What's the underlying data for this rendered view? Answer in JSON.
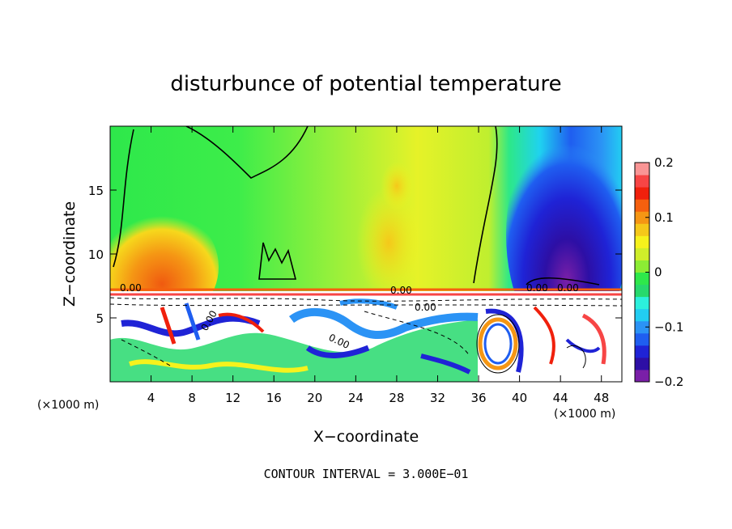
{
  "chart_data": {
    "type": "heatmap",
    "title": "disturbunce of potential temperature",
    "xlabel": "X−coordinate",
    "ylabel": "Z−coordinate",
    "x_unit": "(×1000 m)",
    "z_unit": "(×1000 m)",
    "xlim": [
      0,
      50
    ],
    "ylim": [
      0,
      20
    ],
    "x_ticks": [
      4,
      8,
      12,
      16,
      20,
      24,
      28,
      32,
      36,
      40,
      44,
      48
    ],
    "y_ticks": [
      5,
      10,
      15
    ],
    "x_tick_labels": [
      "4",
      "8",
      "12",
      "16",
      "20",
      "24",
      "28",
      "32",
      "36",
      "40",
      "44",
      "48"
    ],
    "y_tick_labels": [
      "5",
      "10",
      "15"
    ],
    "colorbar": {
      "range": [
        -0.2,
        0.2
      ],
      "tick_values": [
        0.2,
        0.1,
        0,
        -0.1,
        -0.2
      ],
      "tick_labels": [
        "0.2",
        "0.1",
        "0",
        "−0.1",
        "−0.2"
      ],
      "colors": [
        "#7a1fa8",
        "#2d0fa5",
        "#1f23d6",
        "#1f5ef0",
        "#2b93f5",
        "#22cdf2",
        "#2cf0dd",
        "#27d96d",
        "#2ee84b",
        "#8cec34",
        "#cfee2a",
        "#f6f21c",
        "#f5c81a",
        "#f59614",
        "#f5600f",
        "#f0200c",
        "#f74545",
        "#f99595"
      ]
    },
    "contour_labels": [
      "0.00",
      "0.00",
      "0.00",
      "0.00",
      "0.00",
      "0.00",
      "0.00"
    ],
    "footer": "CONTOUR INTERVAL = 3.000E−01"
  }
}
